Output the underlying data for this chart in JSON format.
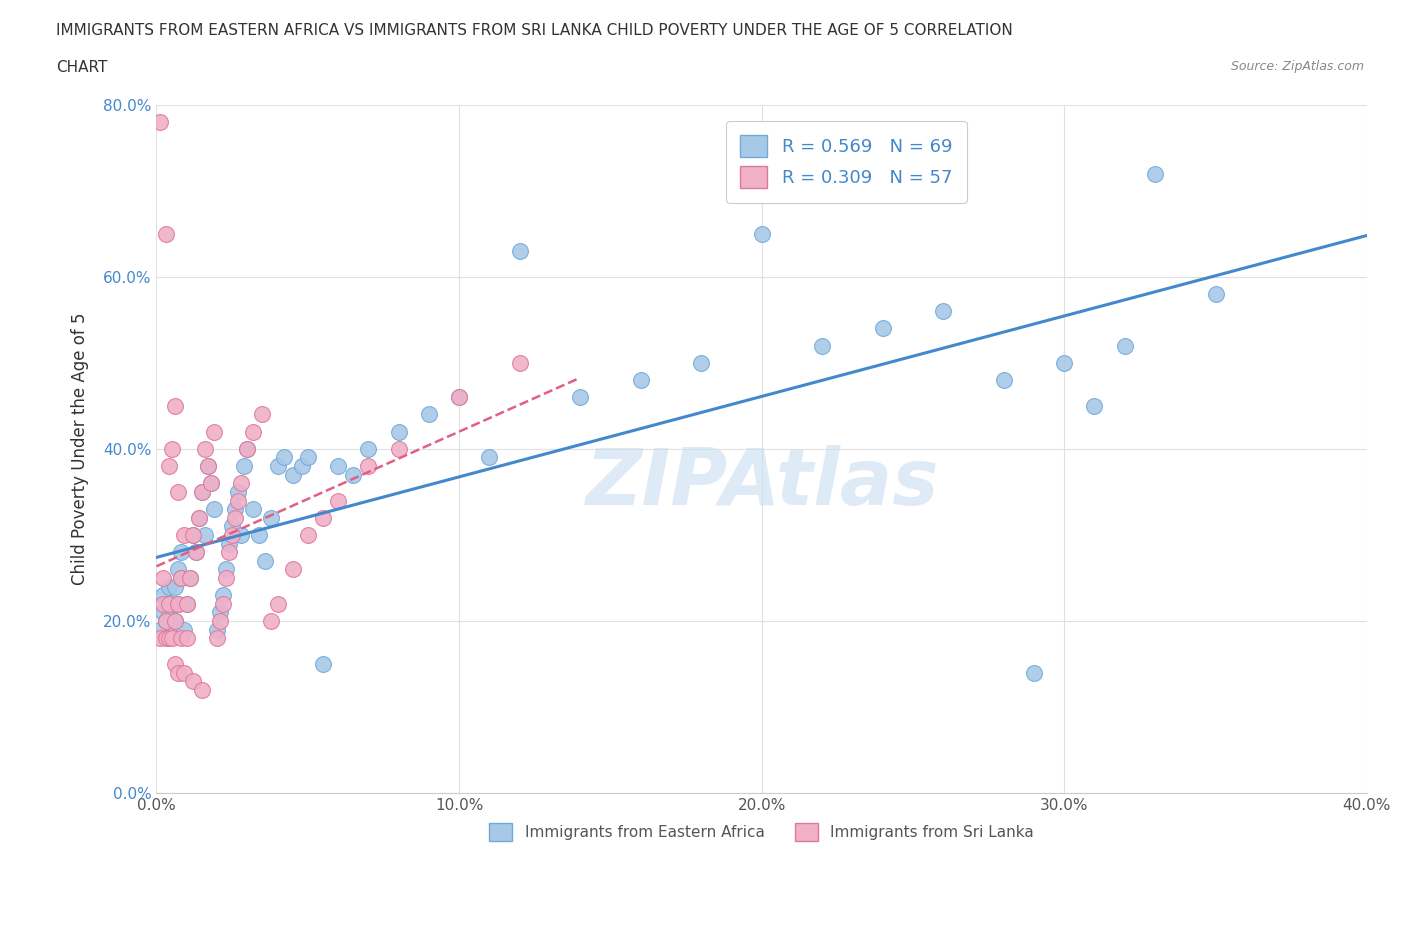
{
  "title_line1": "IMMIGRANTS FROM EASTERN AFRICA VS IMMIGRANTS FROM SRI LANKA CHILD POVERTY UNDER THE AGE OF 5 CORRELATION",
  "title_line2": "CHART",
  "source": "Source: ZipAtlas.com",
  "ylabel": "Child Poverty Under the Age of 5",
  "xmin": 0.0,
  "xmax": 0.4,
  "ymin": 0.0,
  "ymax": 0.8,
  "xticks": [
    0.0,
    0.1,
    0.2,
    0.3,
    0.4
  ],
  "yticks": [
    0.0,
    0.2,
    0.4,
    0.6,
    0.8
  ],
  "xtick_labels": [
    "0.0%",
    "10.0%",
    "20.0%",
    "30.0%",
    "40.0%"
  ],
  "ytick_labels": [
    "0.0%",
    "20.0%",
    "40.0%",
    "60.0%",
    "80.0%"
  ],
  "blue_color": "#a8c8e8",
  "blue_edge_color": "#70aad8",
  "pink_color": "#f0b0c8",
  "pink_edge_color": "#e07898",
  "trend_blue_color": "#4488cc",
  "trend_pink_color": "#e06080",
  "R_blue": 0.569,
  "N_blue": 69,
  "R_pink": 0.309,
  "N_pink": 57,
  "legend_blue_label": "Immigrants from Eastern Africa",
  "legend_pink_label": "Immigrants from Sri Lanka",
  "watermark": "ZIPAtlas",
  "watermark_color": "#c8dff0",
  "blue_scatter_x": [
    0.001,
    0.002,
    0.002,
    0.003,
    0.003,
    0.004,
    0.004,
    0.005,
    0.005,
    0.006,
    0.006,
    0.007,
    0.007,
    0.008,
    0.008,
    0.009,
    0.01,
    0.011,
    0.012,
    0.013,
    0.014,
    0.015,
    0.016,
    0.017,
    0.018,
    0.019,
    0.02,
    0.021,
    0.022,
    0.023,
    0.024,
    0.025,
    0.026,
    0.027,
    0.028,
    0.029,
    0.03,
    0.032,
    0.034,
    0.036,
    0.038,
    0.04,
    0.042,
    0.045,
    0.048,
    0.05,
    0.055,
    0.06,
    0.065,
    0.07,
    0.08,
    0.09,
    0.1,
    0.11,
    0.12,
    0.14,
    0.16,
    0.18,
    0.2,
    0.22,
    0.24,
    0.26,
    0.28,
    0.3,
    0.32,
    0.35,
    0.31,
    0.29,
    0.33
  ],
  "blue_scatter_y": [
    0.19,
    0.21,
    0.23,
    0.2,
    0.22,
    0.21,
    0.24,
    0.19,
    0.22,
    0.2,
    0.24,
    0.22,
    0.26,
    0.25,
    0.28,
    0.19,
    0.22,
    0.25,
    0.3,
    0.28,
    0.32,
    0.35,
    0.3,
    0.38,
    0.36,
    0.33,
    0.19,
    0.21,
    0.23,
    0.26,
    0.29,
    0.31,
    0.33,
    0.35,
    0.3,
    0.38,
    0.4,
    0.33,
    0.3,
    0.27,
    0.32,
    0.38,
    0.39,
    0.37,
    0.38,
    0.39,
    0.15,
    0.38,
    0.37,
    0.4,
    0.42,
    0.44,
    0.46,
    0.39,
    0.63,
    0.46,
    0.48,
    0.5,
    0.65,
    0.52,
    0.54,
    0.56,
    0.48,
    0.5,
    0.52,
    0.58,
    0.45,
    0.14,
    0.72
  ],
  "pink_scatter_x": [
    0.001,
    0.001,
    0.002,
    0.002,
    0.003,
    0.003,
    0.003,
    0.004,
    0.004,
    0.004,
    0.005,
    0.005,
    0.006,
    0.006,
    0.006,
    0.007,
    0.007,
    0.007,
    0.008,
    0.008,
    0.009,
    0.009,
    0.01,
    0.01,
    0.011,
    0.012,
    0.012,
    0.013,
    0.014,
    0.015,
    0.015,
    0.016,
    0.017,
    0.018,
    0.019,
    0.02,
    0.021,
    0.022,
    0.023,
    0.024,
    0.025,
    0.026,
    0.027,
    0.028,
    0.03,
    0.032,
    0.035,
    0.038,
    0.04,
    0.045,
    0.05,
    0.055,
    0.06,
    0.07,
    0.08,
    0.1,
    0.12
  ],
  "pink_scatter_y": [
    0.78,
    0.18,
    0.22,
    0.25,
    0.65,
    0.2,
    0.18,
    0.22,
    0.38,
    0.18,
    0.4,
    0.18,
    0.2,
    0.45,
    0.15,
    0.22,
    0.35,
    0.14,
    0.25,
    0.18,
    0.3,
    0.14,
    0.22,
    0.18,
    0.25,
    0.3,
    0.13,
    0.28,
    0.32,
    0.35,
    0.12,
    0.4,
    0.38,
    0.36,
    0.42,
    0.18,
    0.2,
    0.22,
    0.25,
    0.28,
    0.3,
    0.32,
    0.34,
    0.36,
    0.4,
    0.42,
    0.44,
    0.2,
    0.22,
    0.26,
    0.3,
    0.32,
    0.34,
    0.38,
    0.4,
    0.46,
    0.5
  ]
}
